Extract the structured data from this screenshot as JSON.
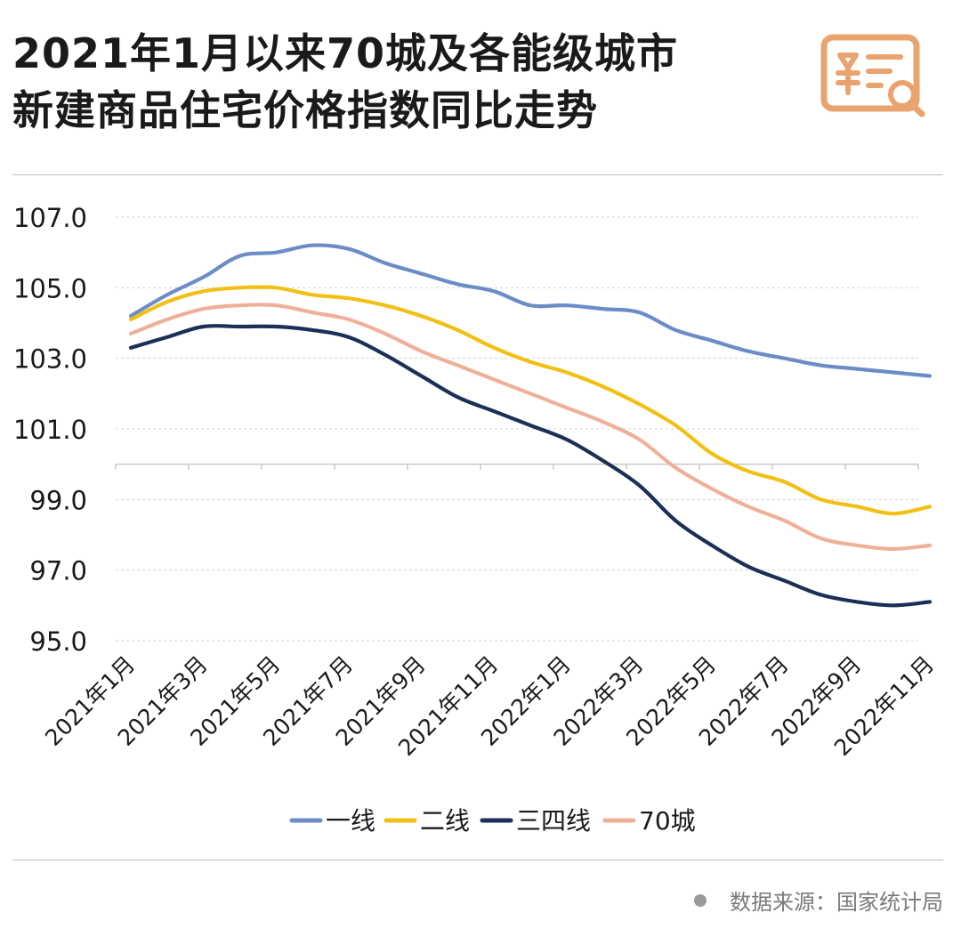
{
  "title": {
    "line1": "2021年1月以来70城及各能级城市",
    "line2": "新建商品住宅价格指数同比走势"
  },
  "icon": "receipt-yen-search-icon",
  "source": "数据来源：国家统计局",
  "colors": {
    "tier1": "#6b8cc6",
    "tier2": "#f2c014",
    "tier34": "#1b2f57",
    "city70": "#efb09a",
    "logo": "#e8a36f",
    "grid": "#d4d4d4"
  },
  "chart_data": {
    "type": "line",
    "legend_position": "bottom",
    "grid": true,
    "ylim": [
      95.0,
      107.0
    ],
    "yticks": [
      "107.0",
      "105.0",
      "103.0",
      "101.0",
      "99.0",
      "97.0",
      "95.0"
    ],
    "ytick_values": [
      107,
      105,
      103,
      101,
      99,
      97,
      95
    ],
    "x": [
      "2021年1月",
      "2021年2月",
      "2021年3月",
      "2021年4月",
      "2021年5月",
      "2021年6月",
      "2021年7月",
      "2021年8月",
      "2021年9月",
      "2021年10月",
      "2021年11月",
      "2021年12月",
      "2022年1月",
      "2022年2月",
      "2022年3月",
      "2022年4月",
      "2022年5月",
      "2022年6月",
      "2022年7月",
      "2022年8月",
      "2022年9月",
      "2022年10月",
      "2022年11月"
    ],
    "xticks": [
      "2021年1月",
      "2021年3月",
      "2021年5月",
      "2021年7月",
      "2021年9月",
      "2021年11月",
      "2022年1月",
      "2022年3月",
      "2022年5月",
      "2022年7月",
      "2022年9月",
      "2022年11月"
    ],
    "xtick_indices": [
      0,
      2,
      4,
      6,
      8,
      10,
      12,
      14,
      16,
      18,
      20,
      22
    ],
    "series": [
      {
        "name": "一线",
        "color": "#6b8cc6",
        "values": [
          104.2,
          104.8,
          105.3,
          105.9,
          106.0,
          106.2,
          106.1,
          105.7,
          105.4,
          105.1,
          104.9,
          104.5,
          104.5,
          104.4,
          104.3,
          103.8,
          103.5,
          103.2,
          103.0,
          102.8,
          102.7,
          102.6,
          102.5
        ]
      },
      {
        "name": "二线",
        "color": "#f2c014",
        "values": [
          104.1,
          104.6,
          104.9,
          105.0,
          105.0,
          104.8,
          104.7,
          104.5,
          104.2,
          103.8,
          103.3,
          102.9,
          102.6,
          102.2,
          101.7,
          101.1,
          100.3,
          99.8,
          99.5,
          99.0,
          98.8,
          98.6,
          98.8
        ]
      },
      {
        "name": "三四线",
        "color": "#1b2f57",
        "values": [
          103.3,
          103.6,
          103.9,
          103.9,
          103.9,
          103.8,
          103.6,
          103.1,
          102.5,
          101.9,
          101.5,
          101.1,
          100.7,
          100.1,
          99.4,
          98.4,
          97.7,
          97.1,
          96.7,
          96.3,
          96.1,
          96.0,
          96.1
        ]
      },
      {
        "name": "70城",
        "color": "#efb09a",
        "values": [
          103.7,
          104.1,
          104.4,
          104.5,
          104.5,
          104.3,
          104.1,
          103.7,
          103.2,
          102.8,
          102.4,
          102.0,
          101.6,
          101.2,
          100.7,
          99.9,
          99.3,
          98.8,
          98.4,
          97.9,
          97.7,
          97.6,
          97.7
        ]
      }
    ]
  }
}
